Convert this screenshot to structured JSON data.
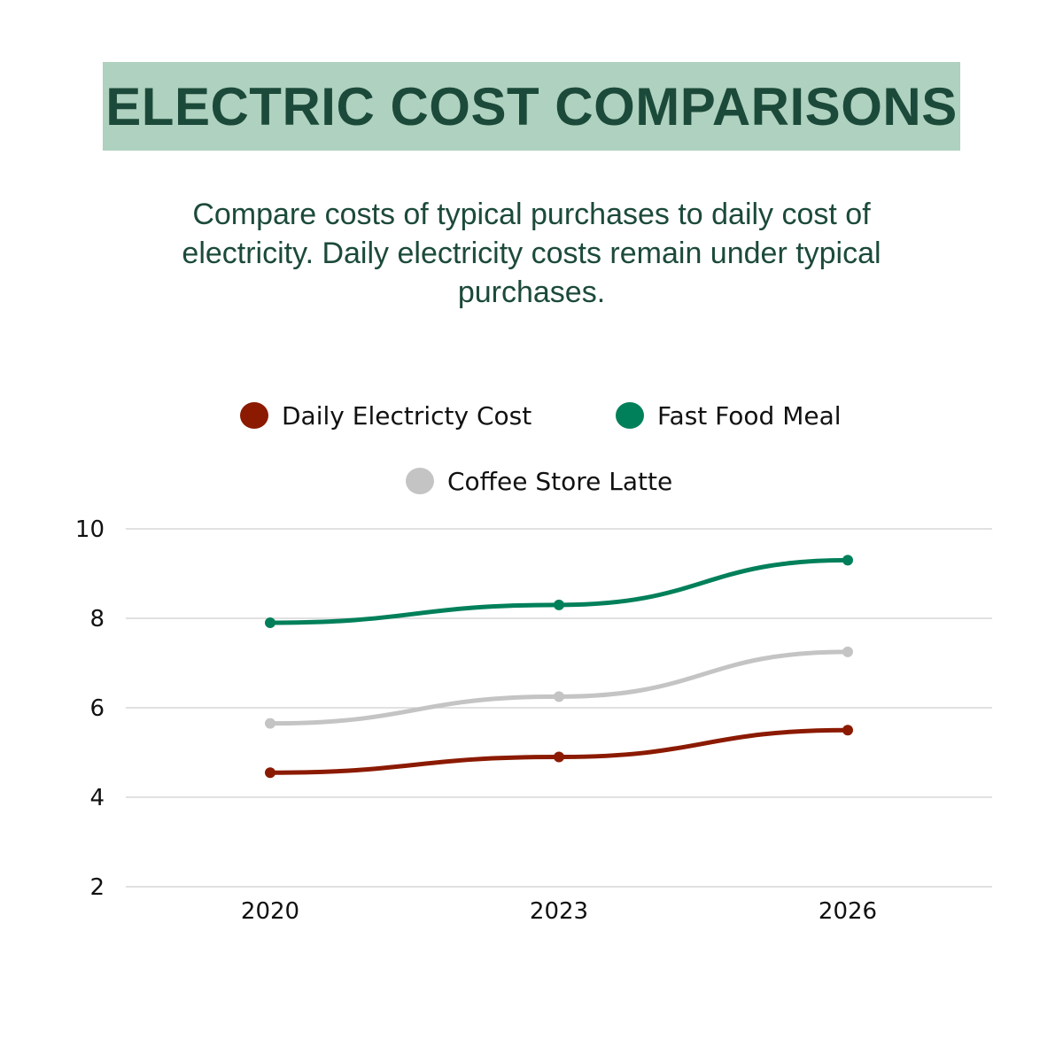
{
  "title": "ELECTRIC COST COMPARISONS",
  "subtitle": "Compare costs of typical purchases to daily cost of electricity. Daily electricity costs remain under typical purchases.",
  "colors": {
    "title_bg": "#afd1bf",
    "title_text": "#1c4a3a"
  },
  "chart_data": {
    "type": "line",
    "categories": [
      "2020",
      "2023",
      "2026"
    ],
    "yticks": [
      "2",
      "4",
      "6",
      "8",
      "10"
    ],
    "ylim": [
      2,
      10
    ],
    "grid": "horizontal",
    "legend_placement": "top",
    "series": [
      {
        "name": "Daily Electricty Cost",
        "color": "#8b1a00",
        "values": [
          4.55,
          4.9,
          5.5
        ]
      },
      {
        "name": "Fast Food Meal",
        "color": "#00805a",
        "values": [
          7.9,
          8.3,
          9.3
        ]
      },
      {
        "name": "Coffee Store Latte",
        "color": "#c4c4c4",
        "values": [
          5.65,
          6.25,
          7.25
        ]
      }
    ]
  }
}
